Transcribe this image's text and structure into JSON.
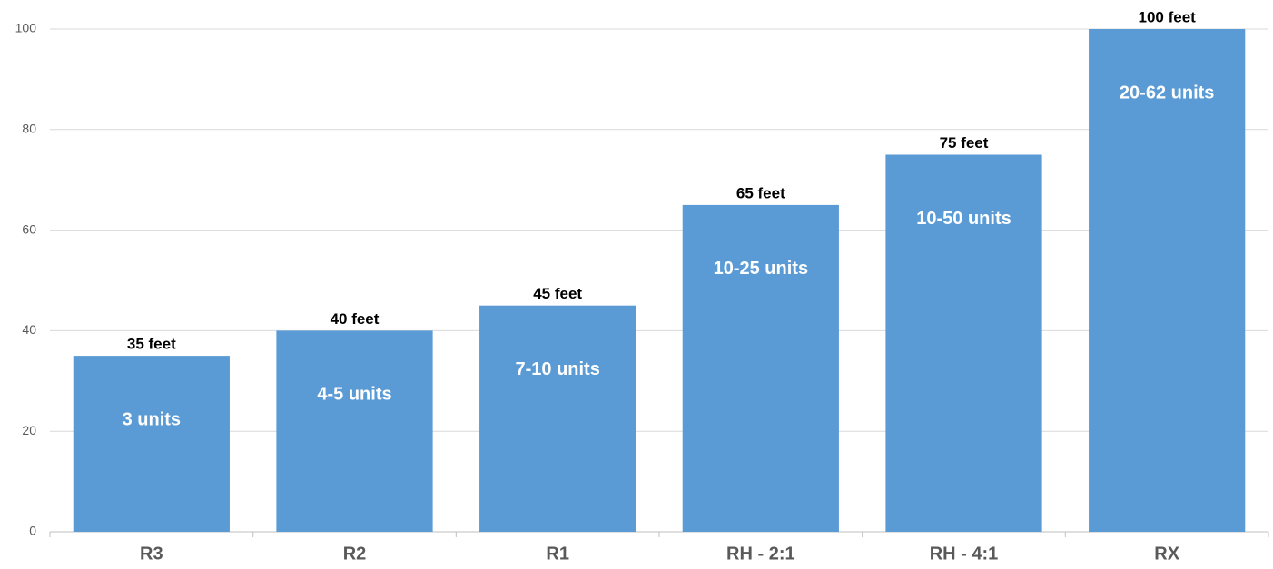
{
  "chart_data": {
    "type": "bar",
    "categories": [
      "R3",
      "R2",
      "R1",
      "RH - 2:1",
      "RH - 4:1",
      "RX"
    ],
    "values": [
      35,
      40,
      45,
      65,
      75,
      100
    ],
    "value_labels": [
      "35 feet",
      "40 feet",
      "45 feet",
      "65 feet",
      "75 feet",
      "100 feet"
    ],
    "unit_labels": [
      "3 units",
      "4-5 units",
      "7-10 units",
      "10-25  units",
      "10-50 units",
      "20-62 units"
    ],
    "color": "#5b9bd5",
    "ylim": [
      0,
      100
    ],
    "yticks": [
      0,
      20,
      40,
      60,
      80,
      100
    ],
    "grid": true
  }
}
